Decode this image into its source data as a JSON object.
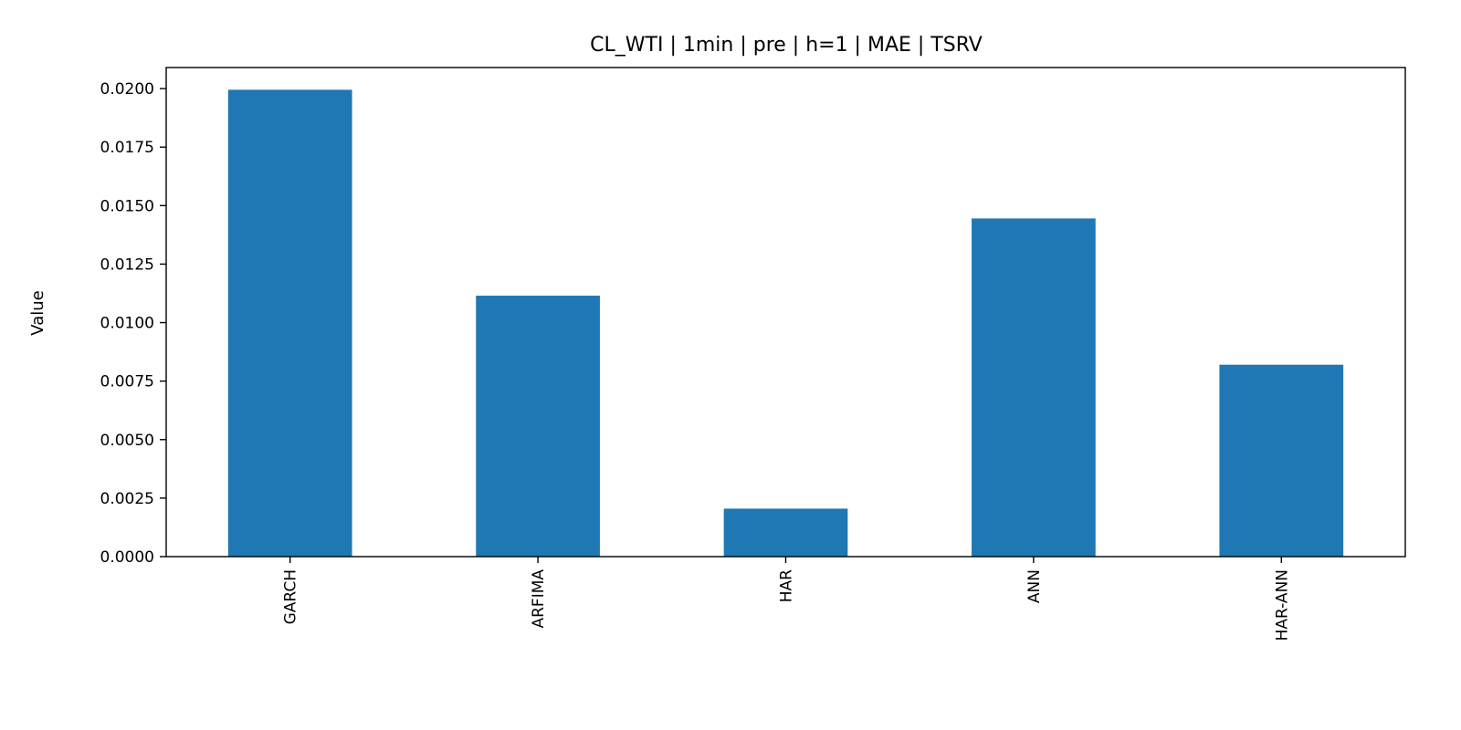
{
  "chart_data": {
    "type": "bar",
    "title": "CL_WTI | 1min | pre | h=1 | MAE | TSRV",
    "xlabel": "",
    "ylabel": "Value",
    "categories": [
      "GARCH",
      "ARFIMA",
      "HAR",
      "ANN",
      "HAR-ANN"
    ],
    "values": [
      0.01995,
      0.01115,
      0.00205,
      0.01445,
      0.0082
    ],
    "ylim": [
      0,
      0.0209
    ],
    "yticks": [
      0.0,
      0.0025,
      0.005,
      0.0075,
      0.01,
      0.0125,
      0.015,
      0.0175,
      0.02
    ],
    "ytick_labels": [
      "0.0000",
      "0.0025",
      "0.0050",
      "0.0075",
      "0.0100",
      "0.0125",
      "0.0150",
      "0.0175",
      "0.0200"
    ],
    "bar_color": "#1f77b4",
    "grid": false,
    "legend": "none"
  }
}
